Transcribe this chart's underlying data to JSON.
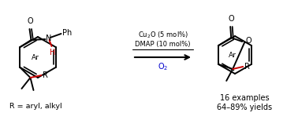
{
  "background_color": "#ffffff",
  "text_color": "#000000",
  "blue_color": "#0000cc",
  "red_color": "#cc0000",
  "line_width": 1.4,
  "figsize": [
    3.78,
    1.53
  ],
  "dpi": 100,
  "reagent1": "Cu$_2$O (5 mol%)",
  "reagent2": "DMAP (10 mol%)",
  "reagent3": "O$_2$",
  "r_label": "R = aryl, alkyl",
  "yield_line1": "16 examples",
  "yield_line2": "64–89% yields"
}
